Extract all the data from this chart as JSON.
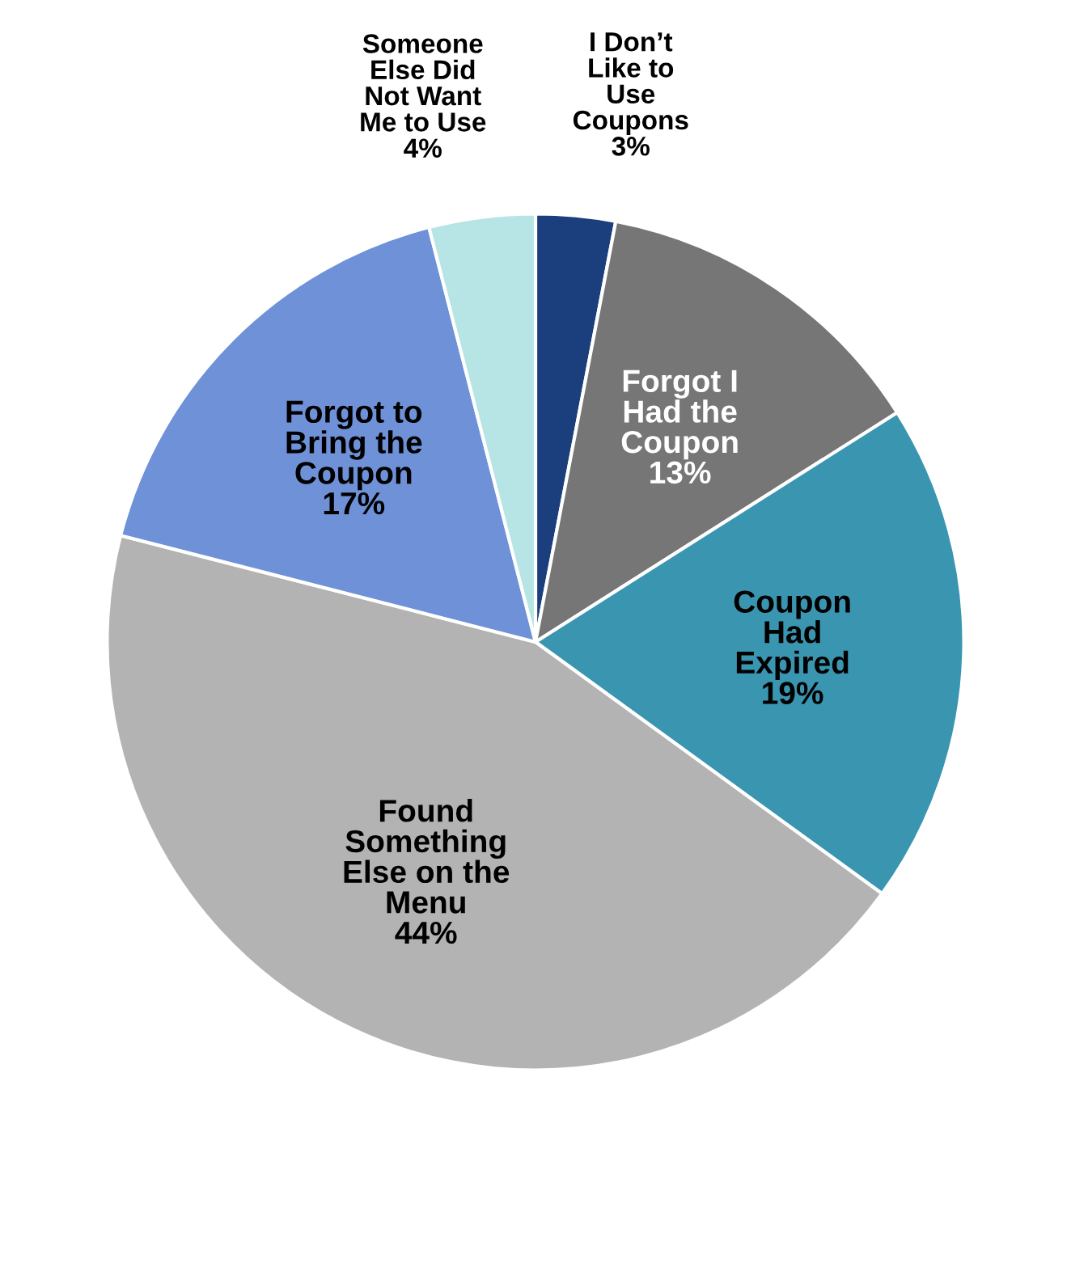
{
  "chart_data": {
    "type": "pie",
    "categories": [
      "I Don’t\nLike to\nUse\nCoupons",
      "Forgot I\nHad the\nCoupon",
      "Coupon\nHad\nExpired",
      "Found\nSomething\nElse on the\nMenu",
      "Forgot to\nBring the\nCoupon",
      "Someone\nElse Did\nNot Want\nMe to Use"
    ],
    "values": [
      3,
      13,
      19,
      44,
      17,
      4
    ],
    "colors": [
      "#1b3f7c",
      "#767676",
      "#3a95b1",
      "#b3b3b3",
      "#6e91d8",
      "#b7e4e4"
    ],
    "value_labels": [
      "3%",
      "13%",
      "19%",
      "44%",
      "17%",
      "4%"
    ]
  }
}
